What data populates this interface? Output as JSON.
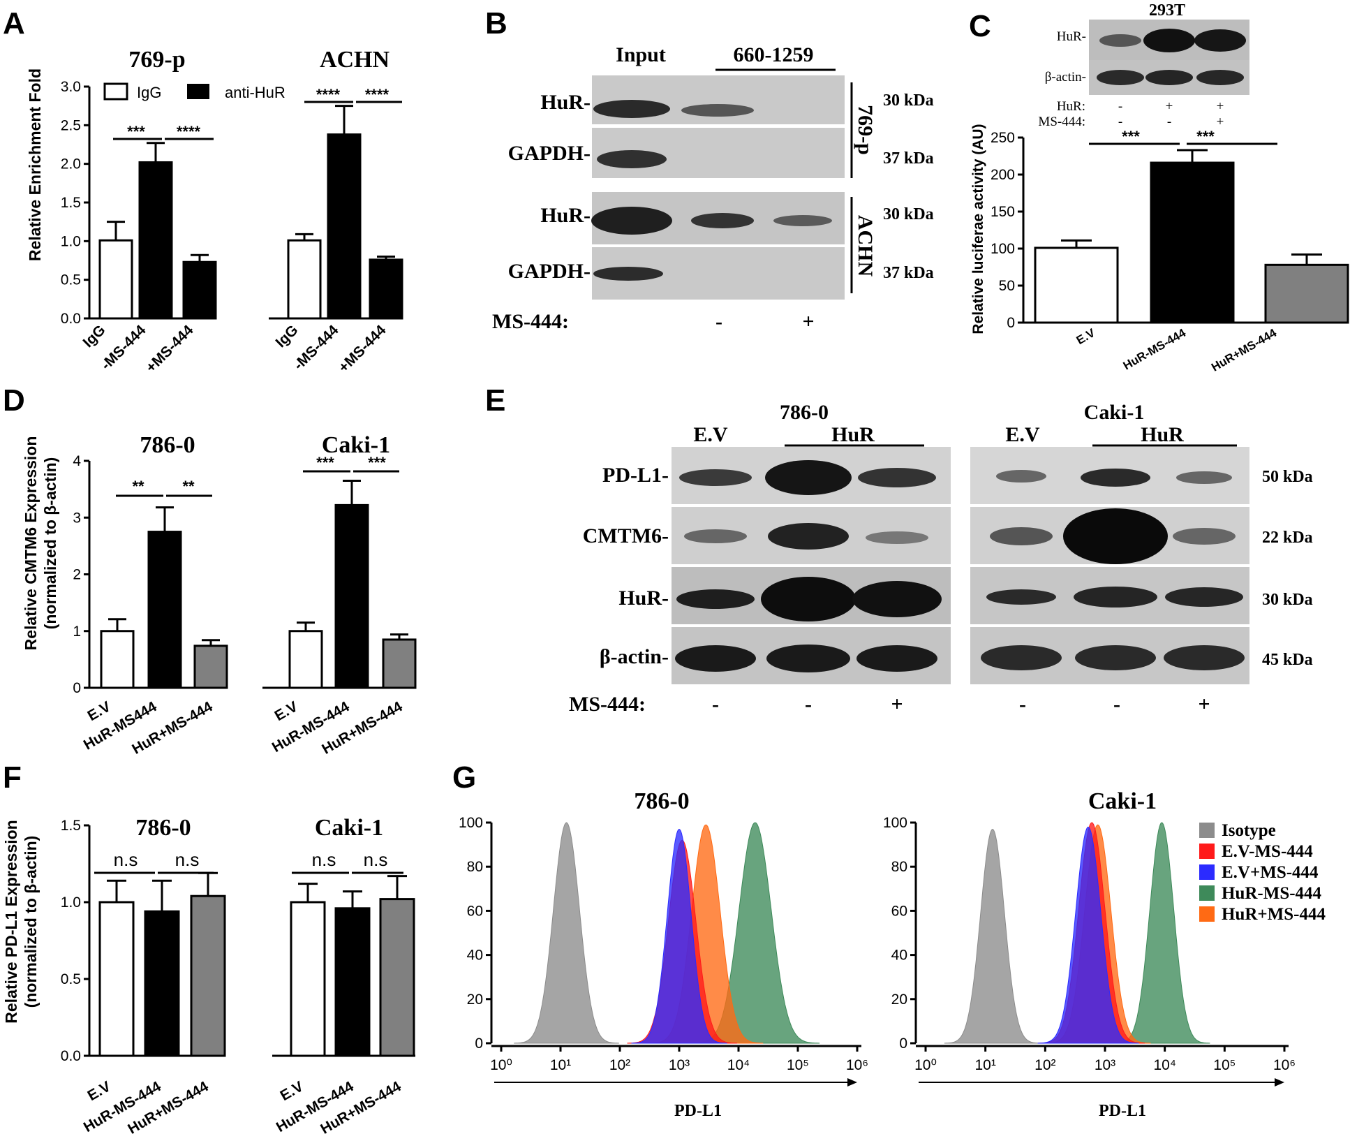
{
  "panels": {
    "A": {
      "label": "A",
      "ylabel": "Relative Enrichment Fold",
      "legend": [
        "IgG",
        "anti-HuR"
      ],
      "groups": [
        "769-p",
        "ACHN"
      ],
      "categories": [
        "IgG",
        "-MS-444",
        "+MS-444"
      ],
      "sig": {
        "g1_1": "***",
        "g1_2": "****",
        "g2_1": "****",
        "g2_2": "****"
      }
    },
    "B": {
      "label": "B",
      "col_input": "Input",
      "col_range": "660-1259",
      "cell_769": "769-p",
      "cell_achn": "ACHN",
      "rows": [
        "HuR-",
        "GAPDH-",
        "HuR-",
        "GAPDH-"
      ],
      "kda": [
        "30 kDa",
        "37 kDa",
        "30 kDa",
        "37 kDa"
      ],
      "ms_label": "MS-444:",
      "ms_signs": [
        "-",
        "+"
      ]
    },
    "C": {
      "label": "C",
      "cell": "293T",
      "rows": [
        "HuR-",
        "β-actin-"
      ],
      "hur_label": "HuR:",
      "ms_label": "MS-444:",
      "hur_signs": [
        "-",
        "+",
        "+"
      ],
      "ms_signs": [
        "-",
        "-",
        "+"
      ],
      "ylabel": "Relative luciferae activity (AU)",
      "categories": [
        "E.V",
        "HuR-MS-444",
        "HuR+MS-444"
      ],
      "sig": {
        "s1": "***",
        "s2": "***"
      }
    },
    "D": {
      "label": "D",
      "ylabel1": "Relative CMTM6 Expression",
      "ylabel2": "(normalized to β-actin)",
      "groups": [
        "786-0",
        "Caki-1"
      ],
      "categories_g1": [
        "E.V",
        "HuR-MS444",
        "HuR+MS-444"
      ],
      "categories_g2": [
        "E.V",
        "HuR-MS-444",
        "HuR+MS-444"
      ],
      "sig": {
        "g1_1": "**",
        "g1_2": "**",
        "g2_1": "***",
        "g2_2": "***"
      }
    },
    "E": {
      "label": "E",
      "cells": [
        "786-0",
        "Caki-1"
      ],
      "ev": "E.V",
      "hur": "HuR",
      "rows": [
        "PD-L1-",
        "CMTM6-",
        "HuR-",
        "β-actin-"
      ],
      "kda": [
        "50 kDa",
        "22 kDa",
        "30 kDa",
        "45 kDa"
      ],
      "ms_label": "MS-444:",
      "ms_signs": [
        "-",
        "-",
        "+",
        "-",
        "-",
        "+"
      ]
    },
    "F": {
      "label": "F",
      "ylabel1": "Relative PD-L1 Expression",
      "ylabel2": "(normalized to β-actin)",
      "groups": [
        "786-0",
        "Caki-1"
      ],
      "categories": [
        "E.V",
        "HuR-MS-444",
        "HuR+MS-444"
      ],
      "sig": {
        "g1_1": "n.s",
        "g1_2": "n.s",
        "g2_1": "n.s",
        "g2_2": "n.s"
      }
    },
    "G": {
      "label": "G",
      "titles": [
        "786-0",
        "Caki-1"
      ],
      "xlabel": "PD-L1",
      "legend": [
        "Isotype",
        "E.V-MS-444",
        "E.V+MS-444",
        "HuR-MS-444",
        "HuR+MS-444"
      ]
    }
  },
  "colors": {
    "black": "#000000",
    "white": "#ffffff",
    "gray_bar": "#808080",
    "dark_gray_bar": "#555555",
    "isotype": "#8c8c8c",
    "ev_minus": "#ff1a1a",
    "ev_plus": "#2b2bff",
    "hur_minus": "#3e8a5a",
    "hur_plus": "#ff6a14"
  },
  "chart_data": [
    {
      "panel": "A",
      "type": "bar",
      "ylabel": "Relative Enrichment Fold",
      "ylim": [
        0,
        3.0
      ],
      "yticks": [
        0.0,
        0.5,
        1.0,
        1.5,
        2.0,
        2.5,
        3.0
      ],
      "categories": [
        "IgG",
        "-MS-444",
        "+MS-444"
      ],
      "series": [
        {
          "name": "769-p",
          "values": [
            1.01,
            2.02,
            0.73
          ],
          "errors": [
            0.24,
            0.25,
            0.09
          ]
        },
        {
          "name": "ACHN",
          "values": [
            1.01,
            2.38,
            0.76
          ],
          "errors": [
            0.08,
            0.37,
            0.04
          ]
        }
      ]
    },
    {
      "panel": "C",
      "type": "bar",
      "ylabel": "Relative luciferae activity (AU)",
      "ylim": [
        0,
        250
      ],
      "yticks": [
        0,
        50,
        100,
        150,
        200,
        250
      ],
      "categories": [
        "E.V",
        "HuR-MS-444",
        "HuR+MS-444"
      ],
      "series": [
        {
          "name": "293T",
          "values": [
            101,
            216,
            78
          ],
          "errors": [
            10,
            17,
            14
          ]
        }
      ]
    },
    {
      "panel": "D",
      "type": "bar",
      "ylabel": "Relative CMTM6 Expression (normalized to β-actin)",
      "ylim": [
        0,
        4
      ],
      "yticks": [
        0,
        1,
        2,
        3,
        4
      ],
      "categories": [
        "E.V",
        "HuR-MS444",
        "HuR+MS-444"
      ],
      "series": [
        {
          "name": "786-0",
          "values": [
            1.0,
            2.75,
            0.74
          ],
          "errors": [
            0.21,
            0.43,
            0.1
          ]
        },
        {
          "name": "Caki-1",
          "values": [
            1.0,
            3.22,
            0.85
          ],
          "errors": [
            0.15,
            0.43,
            0.09
          ]
        }
      ]
    },
    {
      "panel": "F",
      "type": "bar",
      "ylabel": "Relative PD-L1 Expression (normalized to β-actin)",
      "ylim": [
        0,
        1.5
      ],
      "yticks": [
        0.0,
        0.5,
        1.0,
        1.5
      ],
      "categories": [
        "E.V",
        "HuR-MS-444",
        "HuR+MS-444"
      ],
      "series": [
        {
          "name": "786-0",
          "values": [
            1.0,
            0.94,
            1.04
          ],
          "errors": [
            0.14,
            0.2,
            0.15
          ]
        },
        {
          "name": "Caki-1",
          "values": [
            1.0,
            0.96,
            1.02
          ],
          "errors": [
            0.12,
            0.11,
            0.15
          ]
        }
      ]
    },
    {
      "panel": "G",
      "type": "area",
      "xlabel": "PD-L1",
      "xscale": "log10",
      "xlim": [
        0,
        6
      ],
      "ylim": [
        0,
        100
      ],
      "yticks": [
        0,
        20,
        40,
        60,
        80,
        100
      ],
      "xticks": [
        "10^0",
        "10^1",
        "10^2",
        "10^3",
        "10^4",
        "10^5",
        "10^6"
      ],
      "legend": [
        "Isotype",
        "E.V-MS-444",
        "E.V+MS-444",
        "HuR-MS-444",
        "HuR+MS-444"
      ],
      "plots": [
        {
          "title": "786-0",
          "peaks_log10": [
            1.1,
            3.05,
            3.0,
            4.28,
            3.45
          ],
          "peak_heights": [
            100,
            92,
            97,
            100,
            99
          ],
          "widths": [
            0.22,
            0.23,
            0.2,
            0.27,
            0.24
          ]
        },
        {
          "title": "Caki-1",
          "peaks_log10": [
            1.12,
            2.78,
            2.72,
            3.95,
            2.88
          ],
          "peak_heights": [
            97,
            100,
            98,
            100,
            99
          ],
          "widths": [
            0.2,
            0.22,
            0.21,
            0.2,
            0.22
          ]
        }
      ]
    }
  ]
}
